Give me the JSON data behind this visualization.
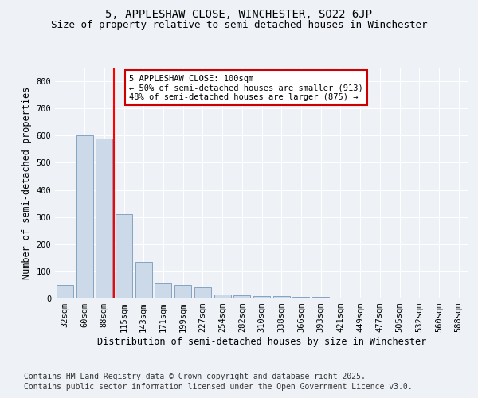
{
  "title": "5, APPLESHAW CLOSE, WINCHESTER, SO22 6JP",
  "subtitle": "Size of property relative to semi-detached houses in Winchester",
  "xlabel": "Distribution of semi-detached houses by size in Winchester",
  "ylabel": "Number of semi-detached properties",
  "categories": [
    "32sqm",
    "60sqm",
    "88sqm",
    "115sqm",
    "143sqm",
    "171sqm",
    "199sqm",
    "227sqm",
    "254sqm",
    "282sqm",
    "310sqm",
    "338sqm",
    "366sqm",
    "393sqm",
    "421sqm",
    "449sqm",
    "477sqm",
    "505sqm",
    "532sqm",
    "560sqm",
    "588sqm"
  ],
  "values": [
    50,
    600,
    590,
    310,
    135,
    55,
    50,
    42,
    15,
    12,
    9,
    8,
    6,
    5,
    0,
    0,
    0,
    0,
    0,
    0,
    0
  ],
  "bar_color": "#ccd9e8",
  "bar_edge_color": "#7799bb",
  "red_line_x": 2.5,
  "annotation_text": "5 APPLESHAW CLOSE: 100sqm\n← 50% of semi-detached houses are smaller (913)\n48% of semi-detached houses are larger (875) →",
  "annotation_box_color": "#ffffff",
  "annotation_box_edge": "#cc0000",
  "ylim": [
    0,
    850
  ],
  "yticks": [
    0,
    100,
    200,
    300,
    400,
    500,
    600,
    700,
    800
  ],
  "footer_line1": "Contains HM Land Registry data © Crown copyright and database right 2025.",
  "footer_line2": "Contains public sector information licensed under the Open Government Licence v3.0.",
  "bg_color": "#eef2f7",
  "plot_bg_color": "#eef2f7",
  "grid_color": "#ffffff",
  "title_fontsize": 10,
  "subtitle_fontsize": 9,
  "axis_label_fontsize": 8.5,
  "tick_fontsize": 7.5,
  "footer_fontsize": 7
}
